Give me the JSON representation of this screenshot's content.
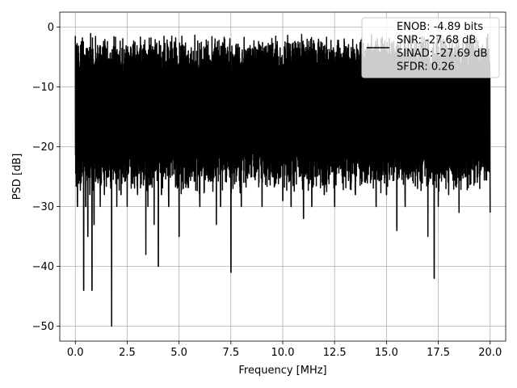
{
  "chart_data": {
    "type": "line",
    "xlabel": "Frequency [MHz]",
    "ylabel": "PSD [dB]",
    "xlim": [
      -0.75,
      20.75
    ],
    "ylim": [
      -52.5,
      2.5
    ],
    "xticks": [
      0.0,
      2.5,
      5.0,
      7.5,
      10.0,
      12.5,
      15.0,
      17.5,
      20.0
    ],
    "xtick_labels": [
      "0.0",
      "2.5",
      "5.0",
      "7.5",
      "10.0",
      "12.5",
      "15.0",
      "17.5",
      "20.0"
    ],
    "yticks": [
      0,
      -10,
      -20,
      -30,
      -40,
      -50
    ],
    "ytick_labels": [
      "0",
      "−10",
      "−20",
      "−30",
      "−40",
      "−50"
    ],
    "grid": true,
    "legend_position": "top-right",
    "legend": [
      "ENOB: -4.89 bits",
      "SNR: -27.68 dB",
      "SINAD: -27.69 dB",
      "SFDR: 0.26"
    ],
    "line_color": "#000000",
    "series": [
      {
        "x": [
          0.0,
          0.1,
          0.2,
          0.3,
          0.4,
          0.5,
          0.6,
          0.7,
          0.8,
          0.9,
          1.0,
          1.2,
          1.4,
          1.6,
          1.75,
          1.8,
          2.0,
          2.2,
          2.5,
          2.8,
          3.0,
          3.4,
          3.5,
          3.8,
          4.0,
          4.15,
          4.5,
          5.0,
          5.2,
          5.5,
          6.0,
          6.6,
          6.8,
          7.0,
          7.5,
          7.6,
          7.95,
          8.0,
          8.5,
          9.0,
          9.5,
          10.0,
          10.4,
          10.8,
          11.0,
          11.4,
          11.6,
          12.0,
          12.5,
          13.0,
          13.5,
          14.0,
          14.5,
          15.0,
          15.5,
          15.9,
          16.5,
          17.0,
          17.3,
          17.5,
          18.0,
          18.5,
          18.9,
          19.5,
          20.0
        ],
        "y": [
          -1.5,
          -30,
          -22,
          -25,
          -44,
          -30,
          -35,
          -28,
          -44,
          -33,
          -25,
          -30,
          -28,
          -25,
          -50,
          -22,
          -30,
          -28,
          -30,
          -25,
          -28,
          -38,
          -30,
          -33,
          -40,
          -28,
          -30,
          -35,
          -27,
          -25,
          -30,
          -25,
          -33,
          -30,
          -41,
          -27,
          -25,
          -30,
          -25,
          -30,
          -25,
          -29,
          -30,
          -25,
          -32,
          -30,
          -25,
          -28,
          -30,
          -25,
          -28,
          -25,
          -30,
          -28,
          -34,
          -30,
          -27,
          -35,
          -42,
          -30,
          -28,
          -31,
          -25,
          -27,
          -31
        ]
      }
    ]
  }
}
